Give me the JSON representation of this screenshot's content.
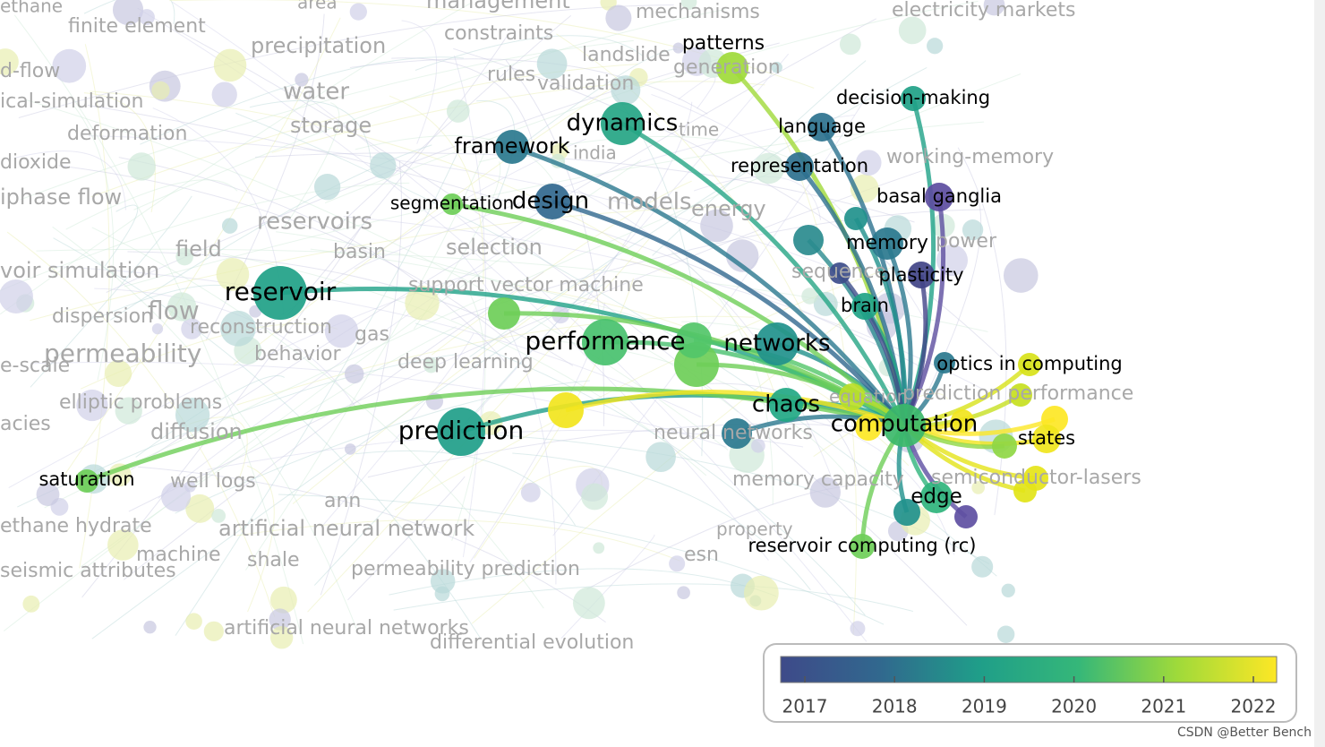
{
  "nodes": [
    {
      "label": "computation",
      "color": "#3cb96a"
    },
    {
      "label": "reservoir",
      "color": "#1fa187"
    },
    {
      "label": "prediction",
      "color": "#1f9e89"
    },
    {
      "label": "performance",
      "color": "#48c16e"
    },
    {
      "label": "networks",
      "color": "#21918c"
    },
    {
      "label": "dynamics",
      "color": "#25a584"
    },
    {
      "label": "framework",
      "color": "#2a788e"
    },
    {
      "label": "design",
      "color": "#31688e"
    },
    {
      "label": "chaos",
      "color": "#22a884"
    },
    {
      "label": "patterns",
      "color": "#a0da39"
    },
    {
      "label": "language",
      "color": "#2c728e"
    },
    {
      "label": "representation",
      "color": "#2d708e"
    },
    {
      "label": "decision-making",
      "color": "#1fa187"
    },
    {
      "label": "basal ganglia",
      "color": "#5c4d9f"
    },
    {
      "label": "memory",
      "color": "#2a788e"
    },
    {
      "label": "plasticity",
      "color": "#414487"
    },
    {
      "label": "brain",
      "color": "#20a386"
    },
    {
      "label": "optics in computing",
      "color": "#d8e219"
    },
    {
      "label": "states",
      "color": "#f0e51c"
    },
    {
      "label": "edge",
      "color": "#2fb47c"
    },
    {
      "label": "reservoir computing (rc)",
      "color": "#6ece58"
    },
    {
      "label": "saturation",
      "color": "#6ece58"
    },
    {
      "label": "segmentation",
      "color": "#6ece58"
    }
  ],
  "unlabeled_nodes": [
    {
      "color": "#f2e51d"
    },
    {
      "color": "#6ece58"
    },
    {
      "color": "#6ece58"
    },
    {
      "color": "#52c569"
    },
    {
      "color": "#2a788e"
    },
    {
      "color": "#2a8b8e"
    },
    {
      "color": "#21918c"
    },
    {
      "color": "#3d4d8a"
    },
    {
      "color": "#5e4fa2"
    },
    {
      "color": "#21918c"
    },
    {
      "color": "#e2e418"
    },
    {
      "color": "#e5e419"
    },
    {
      "color": "#fde725"
    },
    {
      "color": "#8fd744"
    },
    {
      "color": "#c7e020"
    },
    {
      "color": "#fde725"
    },
    {
      "color": "#f1e51d"
    },
    {
      "color": "#bade28"
    },
    {
      "color": "#2a788e"
    }
  ],
  "background_terms": [
    "ethane",
    "finite element",
    "area",
    "management",
    "mechanisms",
    "electricity markets",
    "precipitation",
    "constraints",
    "landslide",
    "generation",
    "d-flow",
    "rules",
    "validation",
    "water",
    "ical-simulation",
    "storage",
    "deformation",
    "time",
    "india",
    "dioxide",
    "working-memory",
    "iphase flow",
    "models",
    "energy",
    "reservoirs",
    "field",
    "selection",
    "basin",
    "power",
    "voir simulation",
    "sequence",
    "support vector machine",
    "flow",
    "dispersion",
    "reconstruction",
    "gas",
    "behavior",
    "permeability",
    "deep learning",
    "e-scale",
    "prediction performance",
    "equation",
    "elliptic problems",
    "acies",
    "diffusion",
    "neural networks",
    "well logs",
    "memory capacity",
    "semiconductor-lasers",
    "ann",
    "artificial neural network",
    "property",
    "machine",
    "shale",
    "esn",
    "seismic attributes",
    "permeability prediction",
    "artificial neural networks",
    "differential evolution",
    "ethane hydrate"
  ],
  "legend": {
    "ticks": [
      2017,
      2018,
      2019,
      2020,
      2021,
      2022
    ]
  },
  "watermark": "CSDN @Better Bench"
}
